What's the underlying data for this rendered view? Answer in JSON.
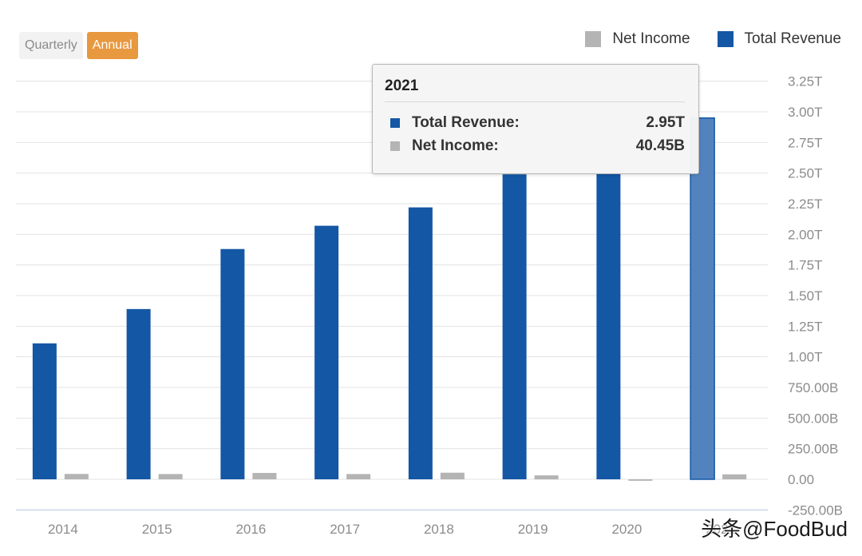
{
  "controls": {
    "quarterly_label": "Quarterly",
    "annual_label": "Annual",
    "selected": "Annual"
  },
  "legend": {
    "items": [
      {
        "label": "Net Income",
        "color": "#b4b4b4"
      },
      {
        "label": "Total Revenue",
        "color": "#1457a5"
      }
    ]
  },
  "tooltip": {
    "title": "2021",
    "rows": [
      {
        "label": "Total Revenue:",
        "value": "2.95T",
        "color": "#1457a5"
      },
      {
        "label": "Net Income:",
        "value": "40.45B",
        "color": "#b4b4b4"
      }
    ]
  },
  "watermark": "头条@FoodBud",
  "chart_data": {
    "type": "bar",
    "categories": [
      "2014",
      "2015",
      "2016",
      "2017",
      "2018",
      "2019",
      "2020",
      "2021"
    ],
    "series": [
      {
        "name": "Total Revenue",
        "color": "#1457a5",
        "unit": "B",
        "values": [
          1110,
          1390,
          1880,
          2070,
          2220,
          2490,
          2500,
          2950
        ]
      },
      {
        "name": "Net Income",
        "color": "#b4b4b4",
        "unit": "B",
        "values": [
          44,
          43,
          52,
          43,
          54,
          32,
          -12,
          40.45
        ]
      }
    ],
    "highlighted_category": "2021",
    "ylim": [
      -250,
      3250
    ],
    "yticks": [
      -250,
      0,
      250,
      500,
      750,
      1000,
      1250,
      1500,
      1750,
      2000,
      2250,
      2500,
      2750,
      3000,
      3250
    ],
    "ytick_labels": [
      "-250.00B",
      "0.00",
      "250.00B",
      "500.00B",
      "750.00B",
      "1.00T",
      "1.25T",
      "1.50T",
      "1.75T",
      "2.00T",
      "2.25T",
      "2.50T",
      "2.75T",
      "3.00T",
      "3.25T"
    ],
    "y_axis_position": "right",
    "grid": true,
    "legend_position": "top-right"
  }
}
